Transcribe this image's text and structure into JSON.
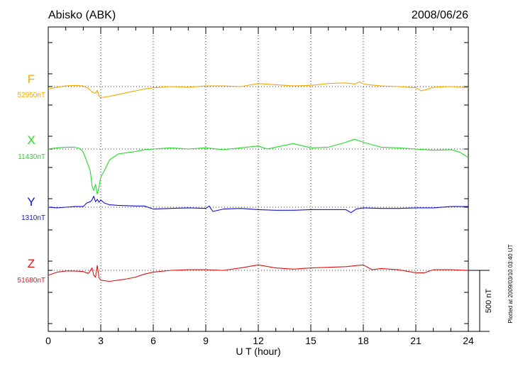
{
  "chart_data": {
    "type": "line",
    "title_left": "Abisko (ABK)",
    "title_right": "2008/06/26",
    "xlabel": "U T (hour)",
    "xlim": [
      0,
      24
    ],
    "x_ticks": [
      "0",
      "3",
      "6",
      "9",
      "12",
      "15",
      "18",
      "21",
      "24"
    ],
    "scale_bar_label": "500 nT",
    "scale_bar_nT": 500,
    "footnote": "Plotted at 2009/03/10 03:40 UT",
    "grid": "dotted vertical every 3 h; dotted baseline per component",
    "series": [
      {
        "name": "F",
        "baseline_label": "52950nT",
        "color": "#f5a800",
        "points": [
          [
            0,
            -20
          ],
          [
            0.5,
            -5
          ],
          [
            1,
            5
          ],
          [
            1.5,
            10
          ],
          [
            2,
            5
          ],
          [
            2.3,
            -15
          ],
          [
            2.5,
            -45
          ],
          [
            2.7,
            -55
          ],
          [
            2.8,
            -30
          ],
          [
            2.9,
            -75
          ],
          [
            3,
            -90
          ],
          [
            3.5,
            -80
          ],
          [
            4,
            -65
          ],
          [
            4.5,
            -50
          ],
          [
            5,
            -35
          ],
          [
            5.5,
            -20
          ],
          [
            6,
            -10
          ],
          [
            7,
            0
          ],
          [
            8,
            -5
          ],
          [
            9,
            5
          ],
          [
            10,
            5
          ],
          [
            11,
            0
          ],
          [
            12,
            25
          ],
          [
            13,
            15
          ],
          [
            14,
            5
          ],
          [
            15,
            10
          ],
          [
            16,
            25
          ],
          [
            17,
            30
          ],
          [
            17.5,
            20
          ],
          [
            17.8,
            40
          ],
          [
            18,
            20
          ],
          [
            19,
            5
          ],
          [
            20,
            0
          ],
          [
            21,
            -10
          ],
          [
            21.3,
            -35
          ],
          [
            21.6,
            -25
          ],
          [
            22,
            -5
          ],
          [
            23,
            0
          ],
          [
            24,
            -10
          ]
        ]
      },
      {
        "name": "X",
        "baseline_label": "11430nT",
        "color": "#22dd22",
        "points": [
          [
            0,
            0
          ],
          [
            0.5,
            10
          ],
          [
            1,
            15
          ],
          [
            1.5,
            15
          ],
          [
            1.8,
            5
          ],
          [
            2,
            -25
          ],
          [
            2.2,
            -100
          ],
          [
            2.4,
            -180
          ],
          [
            2.5,
            -300
          ],
          [
            2.6,
            -340
          ],
          [
            2.7,
            -290
          ],
          [
            2.8,
            -370
          ],
          [
            2.9,
            -310
          ],
          [
            3,
            -230
          ],
          [
            3.2,
            -180
          ],
          [
            3.5,
            -90
          ],
          [
            4,
            -40
          ],
          [
            4.5,
            -30
          ],
          [
            5,
            -20
          ],
          [
            5.5,
            -5
          ],
          [
            6,
            0
          ],
          [
            7,
            10
          ],
          [
            8,
            0
          ],
          [
            9,
            10
          ],
          [
            10,
            -5
          ],
          [
            11,
            10
          ],
          [
            12,
            25
          ],
          [
            12.5,
            0
          ],
          [
            13,
            15
          ],
          [
            14,
            45
          ],
          [
            15,
            10
          ],
          [
            16,
            15
          ],
          [
            17,
            55
          ],
          [
            17.5,
            80
          ],
          [
            18,
            55
          ],
          [
            19,
            15
          ],
          [
            20,
            10
          ],
          [
            21,
            0
          ],
          [
            22,
            -10
          ],
          [
            23,
            -5
          ],
          [
            23.5,
            -25
          ],
          [
            24,
            -70
          ]
        ]
      },
      {
        "name": "Y",
        "baseline_label": "1310nT",
        "color": "#1111dd",
        "points": [
          [
            0,
            0
          ],
          [
            0.5,
            -5
          ],
          [
            1,
            0
          ],
          [
            1.5,
            5
          ],
          [
            2,
            5
          ],
          [
            2.2,
            35
          ],
          [
            2.4,
            45
          ],
          [
            2.5,
            60
          ],
          [
            2.6,
            90
          ],
          [
            2.7,
            45
          ],
          [
            2.8,
            65
          ],
          [
            2.9,
            40
          ],
          [
            3,
            60
          ],
          [
            3.2,
            35
          ],
          [
            3.5,
            20
          ],
          [
            4,
            15
          ],
          [
            5,
            10
          ],
          [
            5.5,
            10
          ],
          [
            6,
            -15
          ],
          [
            7,
            -10
          ],
          [
            8,
            -5
          ],
          [
            9,
            -10
          ],
          [
            9.2,
            10
          ],
          [
            9.4,
            -35
          ],
          [
            10,
            -15
          ],
          [
            11,
            -10
          ],
          [
            12,
            -20
          ],
          [
            13,
            -25
          ],
          [
            14,
            -25
          ],
          [
            15,
            -20
          ],
          [
            16,
            -20
          ],
          [
            17,
            -20
          ],
          [
            17.3,
            -45
          ],
          [
            17.6,
            -15
          ],
          [
            18,
            -5
          ],
          [
            19,
            -10
          ],
          [
            20,
            -10
          ],
          [
            21,
            -5
          ],
          [
            22,
            -5
          ],
          [
            23,
            5
          ],
          [
            24,
            5
          ]
        ]
      },
      {
        "name": "Z",
        "baseline_label": "51680nT",
        "color": "#dd1111",
        "points": [
          [
            0,
            -40
          ],
          [
            0.5,
            -15
          ],
          [
            1,
            -5
          ],
          [
            1.5,
            -5
          ],
          [
            2,
            -10
          ],
          [
            2.3,
            -25
          ],
          [
            2.5,
            20
          ],
          [
            2.6,
            -40
          ],
          [
            2.7,
            -55
          ],
          [
            2.8,
            40
          ],
          [
            2.9,
            -60
          ],
          [
            3,
            -80
          ],
          [
            3.5,
            -90
          ],
          [
            4,
            -80
          ],
          [
            4.5,
            -70
          ],
          [
            5,
            -55
          ],
          [
            5.5,
            -30
          ],
          [
            6,
            -15
          ],
          [
            7,
            0
          ],
          [
            8,
            5
          ],
          [
            9,
            5
          ],
          [
            10,
            0
          ],
          [
            11,
            20
          ],
          [
            12,
            45
          ],
          [
            13,
            20
          ],
          [
            14,
            10
          ],
          [
            15,
            20
          ],
          [
            16,
            25
          ],
          [
            17,
            30
          ],
          [
            18,
            45
          ],
          [
            18.5,
            5
          ],
          [
            19,
            15
          ],
          [
            20,
            5
          ],
          [
            21,
            -20
          ],
          [
            21.5,
            -20
          ],
          [
            22,
            5
          ],
          [
            23,
            5
          ],
          [
            24,
            0
          ]
        ]
      }
    ]
  }
}
